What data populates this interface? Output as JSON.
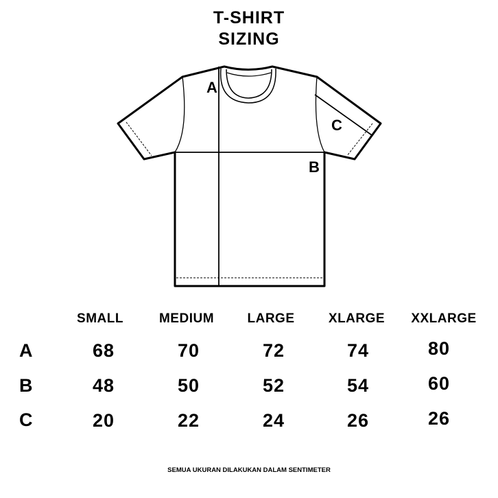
{
  "title_lines": [
    "T-SHIRT",
    "SIZING"
  ],
  "diagram_labels": {
    "a": "A",
    "b": "B",
    "c": "C"
  },
  "size_table": {
    "columns": [
      "SMALL",
      "MEDIUM",
      "LARGE",
      "XLARGE",
      "XXLARGE"
    ],
    "rows": [
      {
        "label": "A",
        "values": [
          "68",
          "70",
          "72",
          "74",
          "80"
        ]
      },
      {
        "label": "B",
        "values": [
          "48",
          "50",
          "52",
          "54",
          "60"
        ]
      },
      {
        "label": "C",
        "values": [
          "20",
          "22",
          "24",
          "26",
          "26"
        ]
      }
    ]
  },
  "footnote": "SEMUA UKURAN DILAKUKAN DALAM SENTIMETER"
}
